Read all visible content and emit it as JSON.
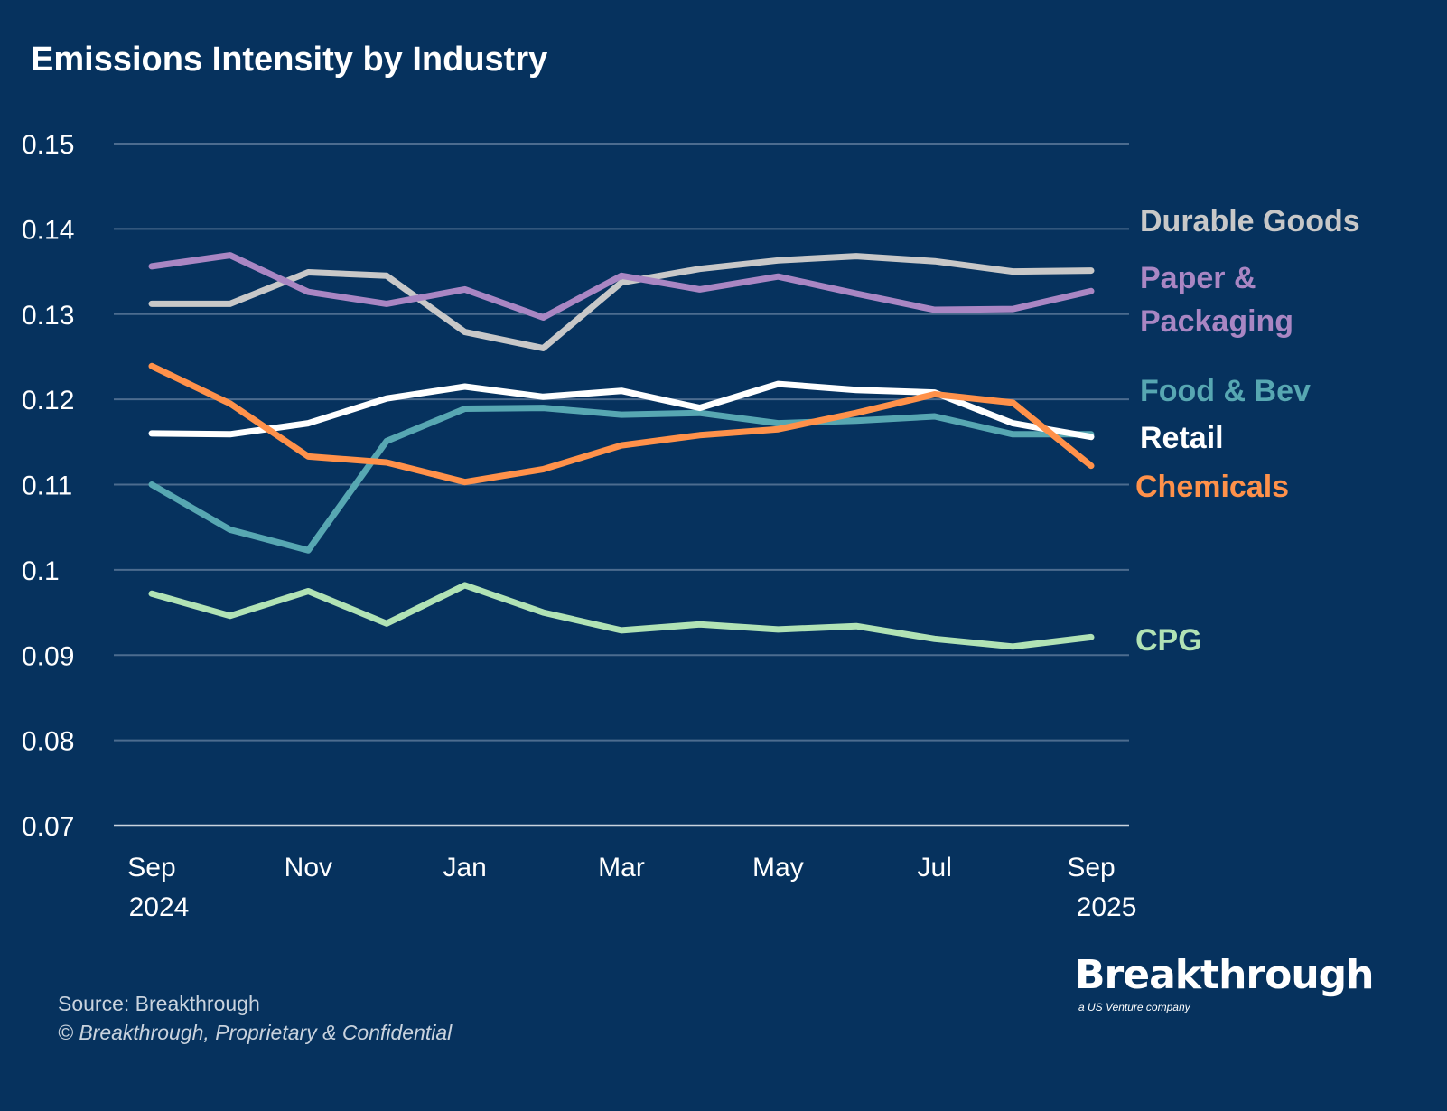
{
  "title": "Emissions Intensity by Industry",
  "footer": {
    "source": "Source: Breakthrough",
    "copyright": "© Breakthrough, Proprietary & Confidential"
  },
  "logo": {
    "text": "Breakthrough",
    "tagline": "a US Venture company"
  },
  "colors": {
    "background": "#06325e",
    "grid": "#4c6c8f",
    "text": "#ffffff"
  },
  "chart_data": {
    "type": "line",
    "title": "Emissions Intensity by Industry",
    "xlabel": "",
    "ylabel": "",
    "x": [
      "Sep 2024",
      "Oct 2024",
      "Nov 2024",
      "Dec 2024",
      "Jan 2025",
      "Feb 2025",
      "Mar 2025",
      "Apr 2025",
      "May 2025",
      "Jun 2025",
      "Jul 2025",
      "Aug 2025",
      "Sep 2025"
    ],
    "x_tick_labels": [
      {
        "index": 0,
        "line1": "Sep",
        "line2": "2024"
      },
      {
        "index": 2,
        "line1": "Nov",
        "line2": ""
      },
      {
        "index": 4,
        "line1": "Jan",
        "line2": ""
      },
      {
        "index": 6,
        "line1": "Mar",
        "line2": ""
      },
      {
        "index": 8,
        "line1": "May",
        "line2": ""
      },
      {
        "index": 10,
        "line1": "Jul",
        "line2": ""
      },
      {
        "index": 12,
        "line1": "Sep",
        "line2": "2025"
      }
    ],
    "ylim": [
      0.07,
      0.15
    ],
    "y_ticks": [
      "0.07",
      "0.08",
      "0.09",
      "0.1",
      "0.11",
      "0.12",
      "0.13",
      "0.14",
      "0.15"
    ],
    "grid": true,
    "legend": "right (direct labels)",
    "series": [
      {
        "name": "Durable Goods",
        "label_lines": [
          "Durable Goods"
        ],
        "color": "#c8c8c8",
        "values": [
          0.1312,
          0.1312,
          0.1349,
          0.1345,
          0.1279,
          0.126,
          0.1337,
          0.1353,
          0.1363,
          0.1368,
          0.1362,
          0.135,
          0.1351
        ]
      },
      {
        "name": "Paper & Packaging",
        "label_lines": [
          "Paper &",
          "Packaging"
        ],
        "color": "#a986c3",
        "values": [
          0.1356,
          0.1369,
          0.1326,
          0.1312,
          0.1329,
          0.1296,
          0.1345,
          0.1329,
          0.1344,
          0.1324,
          0.1305,
          0.1306,
          0.1327
        ]
      },
      {
        "name": "Food & Bev",
        "label_lines": [
          "Food & Bev"
        ],
        "color": "#57a7b2",
        "values": [
          0.11,
          0.1047,
          0.1023,
          0.1151,
          0.1189,
          0.119,
          0.1182,
          0.1184,
          0.1172,
          0.1175,
          0.118,
          0.1159,
          0.1159
        ]
      },
      {
        "name": "Retail",
        "label_lines": [
          "Retail"
        ],
        "color": "#ffffff",
        "values": [
          0.116,
          0.1159,
          0.1172,
          0.1201,
          0.1215,
          0.1203,
          0.121,
          0.119,
          0.1218,
          0.1211,
          0.1208,
          0.1172,
          0.1156
        ]
      },
      {
        "name": "Chemicals",
        "label_lines": [
          "Chemicals"
        ],
        "color": "#ff914a",
        "values": [
          0.1239,
          0.1195,
          0.1133,
          0.1126,
          0.1103,
          0.1118,
          0.1146,
          0.1158,
          0.1165,
          0.1184,
          0.1206,
          0.1196,
          0.1122
        ]
      },
      {
        "name": "CPG",
        "label_lines": [
          "CPG"
        ],
        "color": "#b1e3b5",
        "values": [
          0.0972,
          0.0946,
          0.0975,
          0.0937,
          0.0982,
          0.095,
          0.0929,
          0.0936,
          0.093,
          0.0934,
          0.0919,
          0.091,
          0.0921
        ]
      }
    ]
  }
}
